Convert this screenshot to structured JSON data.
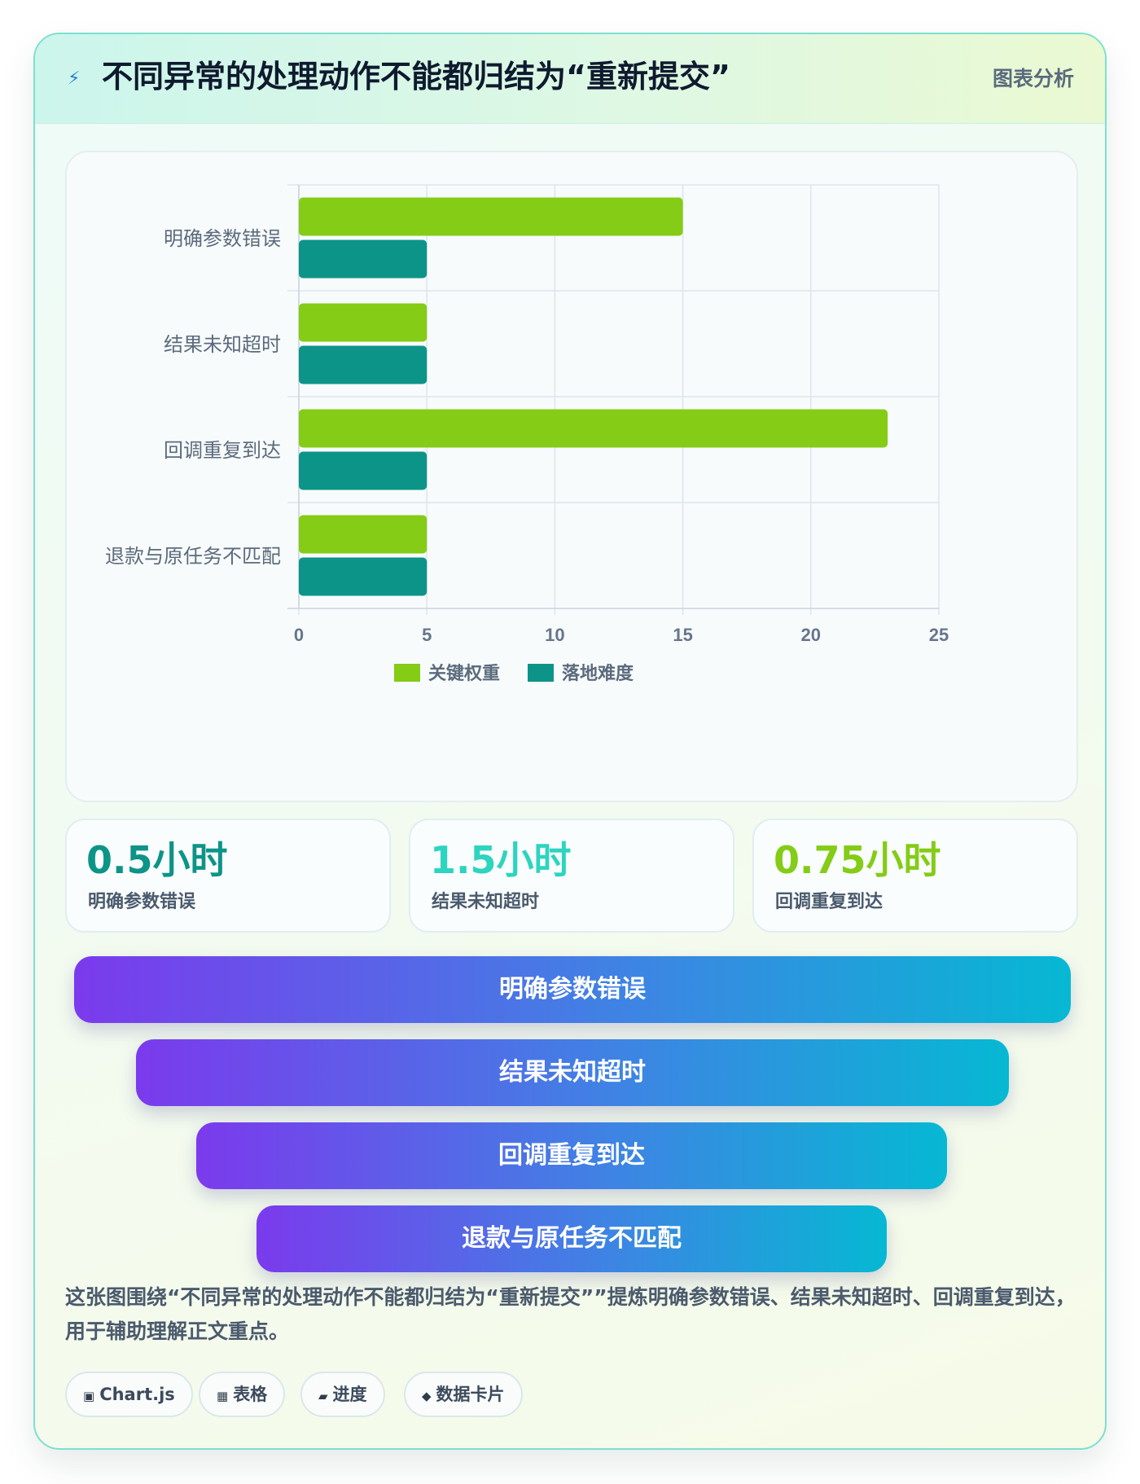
{
  "header": {
    "icon": "lightning-icon",
    "title": "不同异常的处理动作不能都归结为“重新提交”",
    "tag": "图表分析"
  },
  "chart_data": {
    "type": "bar",
    "orientation": "horizontal",
    "categories": [
      "明确参数错误",
      "结果未知超时",
      "回调重复到达",
      "退款与原任务不匹配"
    ],
    "series": [
      {
        "name": "关键权重",
        "values": [
          15,
          5,
          23,
          5
        ],
        "color": "#84cc16"
      },
      {
        "name": "落地难度",
        "values": [
          5,
          5,
          5,
          5
        ],
        "color": "#0d9488"
      }
    ],
    "xlim": [
      0,
      25
    ],
    "xticks": [
      "0",
      "5",
      "10",
      "15",
      "20",
      "25"
    ],
    "grid": true,
    "legend_position": "bottom"
  },
  "stats": [
    {
      "value": "0.5小时",
      "label": "明确参数错误",
      "color": "#0d9488"
    },
    {
      "value": "1.5小时",
      "label": "结果未知超时",
      "color": "#2dd4bf"
    },
    {
      "value": "0.75小时",
      "label": "回调重复到达",
      "color": "#84cc16"
    }
  ],
  "funnel": [
    "明确参数错误",
    "结果未知超时",
    "回调重复到达",
    "退款与原任务不匹配"
  ],
  "summary": "这张图围绕“不同异常的处理动作不能都归结为“重新提交””提炼明确参数错误、结果未知超时、回调重复到达，用于辅助理解正文重点。",
  "tags": [
    {
      "icon": "▣",
      "label": "Chart.js"
    },
    {
      "icon": "▦",
      "label": "表格"
    },
    {
      "icon": "▰",
      "label": "进度"
    },
    {
      "icon": "◆",
      "label": "数据卡片"
    }
  ]
}
